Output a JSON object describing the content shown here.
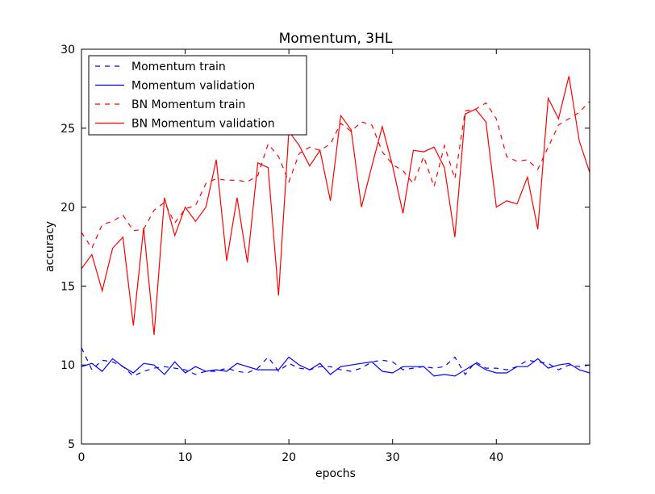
{
  "chart_data": {
    "type": "line",
    "title": "Momentum, 3HL",
    "xlabel": "epochs",
    "ylabel": "accuracy",
    "xlim": [
      0,
      49
    ],
    "ylim": [
      5,
      30
    ],
    "xticks": [
      0,
      10,
      20,
      30,
      40
    ],
    "yticks": [
      5,
      10,
      15,
      20,
      25,
      30
    ],
    "grid": false,
    "legend_position": "top-left",
    "series": [
      {
        "name": "Momentum train",
        "color": "#0000ff",
        "dash": "dashed",
        "values": [
          11.1,
          9.7,
          10.3,
          10.2,
          9.9,
          9.3,
          9.6,
          9.8,
          9.9,
          9.8,
          9.7,
          9.4,
          9.6,
          9.6,
          9.8,
          9.6,
          9.5,
          9.8,
          10.5,
          9.6,
          10.1,
          9.8,
          9.7,
          9.9,
          9.9,
          9.7,
          9.6,
          9.8,
          10.2,
          10.3,
          10.2,
          9.7,
          9.8,
          9.9,
          9.8,
          9.9,
          10.5,
          9.4,
          10.2,
          9.8,
          9.8,
          9.7,
          9.9,
          10.3,
          10.2,
          10.1,
          9.7,
          10.0,
          9.9,
          10.0
        ]
      },
      {
        "name": "Momentum validation",
        "color": "#0000ff",
        "dash": "solid",
        "values": [
          9.9,
          10.1,
          9.6,
          10.4,
          9.9,
          9.5,
          10.1,
          10.0,
          9.4,
          10.2,
          9.5,
          9.9,
          9.6,
          9.7,
          9.6,
          10.1,
          9.9,
          9.7,
          9.7,
          9.7,
          10.5,
          10.0,
          9.7,
          10.1,
          9.4,
          9.9,
          10.0,
          10.1,
          10.2,
          9.6,
          9.5,
          9.9,
          9.9,
          9.9,
          9.3,
          9.4,
          9.3,
          9.7,
          10.1,
          9.7,
          9.5,
          9.5,
          9.9,
          9.9,
          10.4,
          9.8,
          10.0,
          10.1,
          9.7,
          9.5
        ]
      },
      {
        "name": "BN Momentum train",
        "color": "#ff0000",
        "dash": "dashed",
        "values": [
          18.4,
          17.4,
          18.9,
          19.1,
          19.5,
          18.5,
          18.6,
          19.8,
          20.3,
          19.0,
          19.9,
          20.1,
          21.5,
          21.8,
          21.7,
          21.7,
          21.6,
          22.0,
          24.0,
          23.2,
          21.6,
          23.4,
          23.8,
          23.6,
          24.0,
          25.3,
          24.8,
          25.4,
          25.2,
          23.5,
          22.7,
          22.3,
          21.5,
          23.2,
          21.3,
          23.9,
          21.8,
          26.1,
          26.2,
          26.6,
          25.6,
          23.2,
          22.9,
          23.0,
          22.4,
          23.8,
          25.2,
          25.6,
          26.0,
          26.7
        ]
      },
      {
        "name": "BN Momentum validation",
        "color": "#ff0000",
        "dash": "solid",
        "values": [
          16.1,
          17.0,
          14.7,
          17.4,
          18.1,
          12.5,
          18.7,
          11.9,
          20.6,
          18.2,
          20.0,
          19.1,
          20.0,
          23.0,
          16.6,
          20.6,
          16.5,
          22.8,
          22.5,
          14.4,
          24.8,
          23.9,
          22.6,
          23.6,
          20.4,
          25.8,
          24.9,
          20.0,
          22.6,
          25.1,
          22.6,
          19.6,
          23.6,
          23.5,
          23.8,
          22.5,
          18.1,
          25.9,
          26.2,
          25.4,
          20.0,
          20.4,
          20.2,
          21.9,
          18.6,
          26.9,
          25.6,
          28.3,
          24.2,
          22.2
        ]
      }
    ]
  }
}
